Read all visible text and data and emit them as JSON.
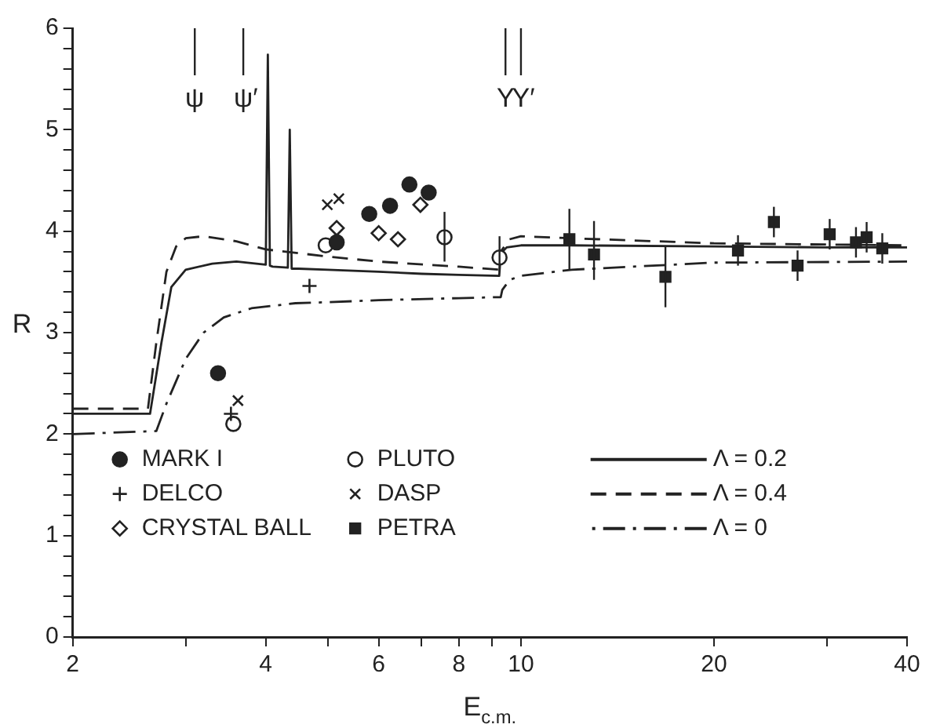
{
  "chart_data": {
    "type": "scatter",
    "xlabel": "E$_{c.m.}$",
    "ylabel": "R",
    "log": "x",
    "xlim": [
      2,
      40
    ],
    "xticks": [
      2,
      {
        "value": 3,
        "label": null
      },
      4,
      {
        "value": 5,
        "label": null
      },
      6,
      {
        "value": 7,
        "label": null
      },
      8,
      {
        "value": 9,
        "label": null
      },
      10,
      20,
      {
        "value": 30,
        "label": null
      },
      40
    ],
    "ylim": [
      0,
      6
    ],
    "yticks": [
      0,
      {
        "value": 0.2,
        "label": null
      },
      {
        "value": 0.4,
        "label": null
      },
      {
        "value": 0.6,
        "label": null
      },
      {
        "value": 0.8,
        "label": null
      },
      1,
      {
        "value": 1.2,
        "label": null
      },
      {
        "value": 1.4,
        "label": null
      },
      {
        "value": 1.6,
        "label": null
      },
      {
        "value": 1.8,
        "label": null
      },
      2,
      {
        "value": 2.2,
        "label": null
      },
      {
        "value": 2.4,
        "label": null
      },
      {
        "value": 2.6,
        "label": null
      },
      {
        "value": 2.8,
        "label": null
      },
      3,
      {
        "value": 3.2,
        "label": null
      },
      {
        "value": 3.4,
        "label": null
      },
      {
        "value": 3.6,
        "label": null
      },
      {
        "value": 3.8,
        "label": null
      },
      4,
      {
        "value": 4.2,
        "label": null
      },
      {
        "value": 4.4,
        "label": null
      },
      {
        "value": 4.6,
        "label": null
      },
      {
        "value": 4.8,
        "label": null
      },
      5,
      {
        "value": 5.2,
        "label": null
      },
      {
        "value": 5.4,
        "label": null
      },
      {
        "value": 5.6,
        "label": null
      },
      {
        "value": 5.8,
        "label": null
      },
      6
    ],
    "grid": false,
    "legend": "bottom left",
    "series": [
      {
        "name": "MARK I",
        "type": "scatter",
        "marker": "circle",
        "color": "#222222",
        "x": [
          3.37,
          5.16,
          5.8,
          6.25,
          6.7,
          7.18
        ],
        "values": [
          2.6,
          3.89,
          4.17,
          4.25,
          4.46,
          4.38
        ]
      },
      {
        "name": "DELCO",
        "type": "scatter",
        "marker": "cross",
        "color": "#222222",
        "x": [
          3.53,
          4.68
        ],
        "values": [
          2.2,
          3.46
        ]
      },
      {
        "name": "CRYSTAL BALL",
        "type": "scatter",
        "marker": "diamond-open",
        "color": "#222222",
        "x": [
          5.16,
          6.0,
          6.43,
          6.97
        ],
        "values": [
          4.03,
          3.98,
          3.92,
          4.26
        ]
      },
      {
        "name": "PLUTO",
        "type": "scatter",
        "marker": "circle-open",
        "color": "#222222",
        "x": [
          3.56,
          4.96,
          7.6,
          9.26
        ],
        "values": [
          2.1,
          3.86,
          3.94,
          3.74
        ],
        "errors": [
          null,
          null,
          [
            3.7,
            4.19
          ],
          [
            3.6,
            3.95
          ]
        ]
      },
      {
        "name": "DASP",
        "type": "scatter",
        "marker": "cross",
        "color": "#222222",
        "x": [
          3.62,
          4.99,
          5.2
        ],
        "values": [
          2.33,
          4.26,
          4.32
        ]
      },
      {
        "name": "PETRA",
        "type": "scatter",
        "marker": "square",
        "color": "#222222",
        "x": [
          11.9,
          13.0,
          16.8,
          21.8,
          24.8,
          27.0,
          30.3,
          33.3,
          34.6,
          35.9,
          36.6
        ],
        "values": [
          3.92,
          3.77,
          3.55,
          3.81,
          4.09,
          3.66,
          3.97,
          3.89,
          3.94,
          null,
          3.83
        ],
        "errors": [
          0.3,
          [
            3.52,
            4.1
          ],
          [
            3.25,
            3.85
          ],
          0.15,
          0.15,
          0.15,
          0.15,
          0.15,
          0.15,
          null,
          0.15
        ]
      },
      {
        "name": "Λ = 0.2",
        "type": "line",
        "line_style": "solid",
        "color": "#222222",
        "x": [
          2,
          2.64,
          2.75,
          2.85,
          3.0,
          3.3,
          3.6,
          4.0,
          4.03,
          4.06,
          4.1,
          4.33,
          4.36,
          4.39,
          4.5,
          5,
          6,
          7,
          8,
          9.25,
          9.3,
          9.5,
          10,
          12,
          20,
          30,
          40
        ],
        "values": [
          2.2,
          2.2,
          2.9,
          3.45,
          3.62,
          3.68,
          3.7,
          3.67,
          5.74,
          3.66,
          3.65,
          3.64,
          5.0,
          3.63,
          3.63,
          3.62,
          3.6,
          3.58,
          3.57,
          3.56,
          3.78,
          3.84,
          3.86,
          3.86,
          3.85,
          3.84,
          3.84
        ]
      },
      {
        "name": "Λ = 0.4",
        "type": "line",
        "line_style": "dashed",
        "color": "#222222",
        "x": [
          2,
          2.62,
          2.7,
          2.8,
          2.9,
          3.0,
          3.2,
          3.6,
          4,
          5,
          6,
          8,
          9.25,
          9.3,
          9.6,
          10,
          12,
          20,
          40
        ],
        "values": [
          2.25,
          2.25,
          2.9,
          3.6,
          3.85,
          3.93,
          3.95,
          3.9,
          3.82,
          3.75,
          3.7,
          3.65,
          3.62,
          3.8,
          3.92,
          3.95,
          3.93,
          3.88,
          3.86
        ]
      },
      {
        "name": "Λ = 0",
        "type": "line",
        "line_style": "dashdot",
        "color": "#222222",
        "x": [
          2,
          2.7,
          2.8,
          3.0,
          3.2,
          3.44,
          3.8,
          4.45,
          5,
          6,
          8,
          9.3,
          9.35,
          9.6,
          10,
          12,
          20,
          40
        ],
        "values": [
          2.0,
          2.03,
          2.3,
          2.74,
          3.0,
          3.15,
          3.24,
          3.29,
          3.3,
          3.32,
          3.34,
          3.35,
          3.42,
          3.52,
          3.56,
          3.62,
          3.69,
          3.7
        ]
      }
    ],
    "ref_lines": [
      {
        "axis": "x",
        "value": 3.1,
        "label": "ψ"
      },
      {
        "axis": "x",
        "value": 3.69,
        "label": "ψ′"
      },
      {
        "axis": "x",
        "value": 9.46,
        "label": "Υ"
      },
      {
        "axis": "x",
        "value": 10.0,
        "label": "Υ′"
      }
    ]
  }
}
